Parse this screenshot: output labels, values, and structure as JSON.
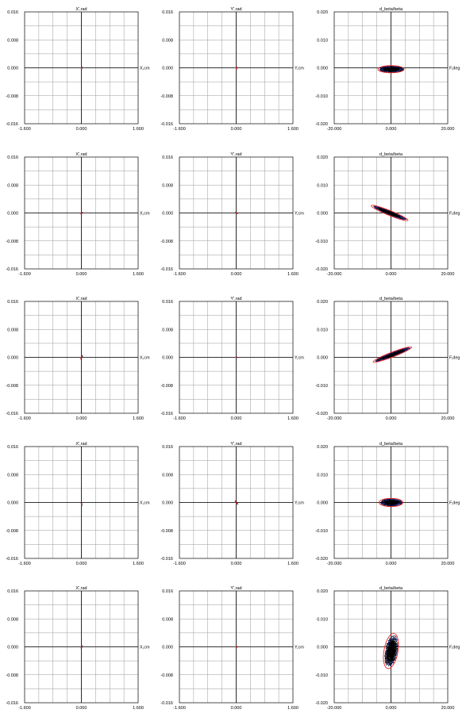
{
  "colors": {
    "ellipse": "#ee2222",
    "points": "#000000",
    "points_accent": "#1c2a8c",
    "grid": "#9a9a9a",
    "axis": "#000000"
  },
  "axes": {
    "X": {
      "title": "X',rad",
      "xlabel": "X,cm",
      "xticks": [
        "-1.600",
        "0.000",
        "1.600"
      ],
      "yticks": [
        "0.016",
        "0.008",
        "0.000",
        "-0.008",
        "-0.016"
      ],
      "xlim": [
        -1.6,
        1.6
      ],
      "ylim": [
        -0.016,
        0.016
      ]
    },
    "Y": {
      "title": "Y',rad",
      "xlabel": "Y,cm",
      "xticks": [
        "-1.600",
        "0.000",
        "1.600"
      ],
      "yticks": [
        "0.016",
        "0.008",
        "0.000",
        "-0.008",
        "-0.016"
      ],
      "xlim": [
        -1.6,
        1.6
      ],
      "ylim": [
        -0.016,
        0.016
      ]
    },
    "L": {
      "title": "d_beta/beta",
      "xlabel": "F,deg",
      "xticks": [
        "-20.000",
        "0.000",
        "20.000"
      ],
      "yticks": [
        "0.020",
        "0.010",
        "0.000",
        "-0.010",
        "-0.020"
      ],
      "xlim": [
        -20,
        20
      ],
      "ylim": [
        -0.02,
        0.02
      ]
    }
  },
  "chart_data": [
    {
      "type": "scatter",
      "row": 1,
      "col": 1,
      "axes": "X",
      "ellipse": {
        "center": [
          0.0,
          0.0
        ],
        "semi_axes": [
          1.8,
          0.12
        ],
        "angle_deg": 82,
        "spread": 0.88
      }
    },
    {
      "type": "scatter",
      "row": 1,
      "col": 2,
      "axes": "Y",
      "ellipse": {
        "center": [
          0.0,
          0.0
        ],
        "semi_axes": [
          1.74,
          0.11
        ],
        "angle_deg": -85,
        "spread": 0.88
      }
    },
    {
      "type": "scatter",
      "row": 1,
      "col": 3,
      "axes": "L",
      "ellipse": {
        "center": [
          0.0,
          -0.0005
        ],
        "semi_axes": [
          16.5,
          4.5
        ],
        "angle_deg": 0,
        "spread": 0.93
      }
    },
    {
      "type": "scatter",
      "row": 2,
      "col": 1,
      "axes": "X",
      "ellipse": {
        "center": [
          0.0,
          0.0
        ],
        "semi_axes": [
          1.55,
          0.15
        ],
        "angle_deg": 57,
        "spread": 0.88
      }
    },
    {
      "type": "scatter",
      "row": 2,
      "col": 2,
      "axes": "Y",
      "ellipse": {
        "center": [
          0.0,
          0.0
        ],
        "semi_axes": [
          1.38,
          0.19
        ],
        "angle_deg": -42,
        "spread": 0.88
      }
    },
    {
      "type": "scatter",
      "row": 2,
      "col": 3,
      "axes": "L",
      "ellipse": {
        "center": [
          -0.5,
          0.0
        ],
        "semi_axes": [
          25.0,
          3.0
        ],
        "angle_deg": -22,
        "spread": 0.9
      }
    },
    {
      "type": "scatter",
      "row": 3,
      "col": 1,
      "axes": "X",
      "ellipse": {
        "center": [
          0.0,
          0.0
        ],
        "semi_axes": [
          2.54,
          0.07
        ],
        "angle_deg": 64,
        "spread": 0.9
      }
    },
    {
      "type": "scatter",
      "row": 3,
      "col": 2,
      "axes": "Y",
      "ellipse": {
        "center": [
          0.0,
          0.0
        ],
        "semi_axes": [
          0.63,
          0.35
        ],
        "angle_deg": -5,
        "spread": 0.9
      }
    },
    {
      "type": "scatter",
      "row": 3,
      "col": 3,
      "axes": "L",
      "ellipse": {
        "center": [
          0.5,
          0.001
        ],
        "semi_axes": [
          26.0,
          3.0
        ],
        "angle_deg": 21,
        "spread": 0.9
      }
    },
    {
      "type": "scatter",
      "row": 4,
      "col": 1,
      "axes": "X",
      "ellipse": {
        "center": [
          0.0,
          -0.0005
        ],
        "semi_axes": [
          1.84,
          0.13
        ],
        "angle_deg": -79,
        "spread": 0.88
      }
    },
    {
      "type": "scatter",
      "row": 4,
      "col": 2,
      "axes": "Y",
      "ellipse": {
        "center": [
          0.0,
          0.0
        ],
        "semi_axes": [
          2.85,
          0.1
        ],
        "angle_deg": -56,
        "spread": 0.9
      }
    },
    {
      "type": "scatter",
      "row": 4,
      "col": 3,
      "axes": "L",
      "ellipse": {
        "center": [
          0.0,
          0.0
        ],
        "semi_axes": [
          15.0,
          5.2
        ],
        "angle_deg": 0,
        "spread": 0.9
      }
    },
    {
      "type": "scatter",
      "row": 5,
      "col": 1,
      "axes": "X",
      "ellipse": {
        "center": [
          0.0,
          0.0
        ],
        "semi_axes": [
          1.72,
          0.12
        ],
        "angle_deg": 71,
        "spread": 0.88
      }
    },
    {
      "type": "scatter",
      "row": 5,
      "col": 2,
      "axes": "Y",
      "ellipse": {
        "center": [
          0.0,
          0.0
        ],
        "semi_axes": [
          0.75,
          0.43
        ],
        "angle_deg": -40,
        "spread": 0.88
      }
    },
    {
      "type": "scatter",
      "row": 5,
      "col": 3,
      "axes": "L",
      "ellipse": {
        "center": [
          0.0,
          -0.0015
        ],
        "semi_axes": [
          22.5,
          8.8
        ],
        "angle_deg": 80,
        "spread": 0.88
      }
    }
  ]
}
